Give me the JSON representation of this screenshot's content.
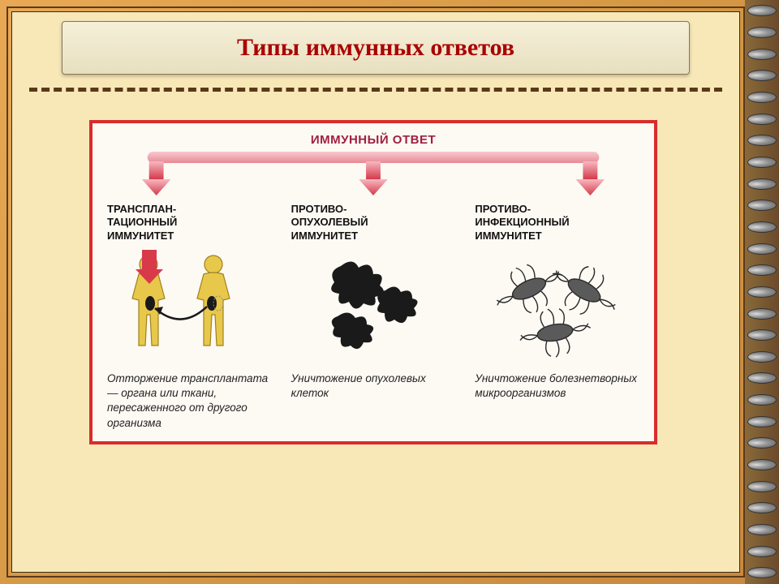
{
  "title": "Типы иммунных ответов",
  "diagram": {
    "border_color": "#d82c2c",
    "bg_color": "#fdfaf4",
    "top_label": "ИММУННЫЙ ОТВЕТ",
    "connector": {
      "bar_gradient": [
        "#f8c8ce",
        "#e88a95"
      ],
      "arrow_gradient": [
        "#f7b8c0",
        "#d43a4a"
      ]
    },
    "columns": [
      {
        "title": "ТРАНСПЛАН-\nТАЦИОННЫЙ\nИММУНИТЕТ",
        "desc": "Отторжение трансплантата — органа или ткани, пересаженного от другого организма",
        "body_color": "#e8c84a",
        "kidney_color": "#1a1a1a",
        "arrow_fill": "#d83a4a"
      },
      {
        "title": "ПРОТИВО-\nОПУХОЛЕВЫЙ\nИММУНИТЕТ",
        "desc": "Уничтожение опухолевых клеток",
        "blob_color": "#1a1a1a"
      },
      {
        "title": "ПРОТИВО-\nИНФЕКЦИОННЫЙ\nИММУНИТЕТ",
        "desc": "Уничтожение болезнетворных микроорганизмов",
        "microbe_fill": "#5a5a5a",
        "flagella": "#2a2a2a"
      }
    ]
  },
  "colors": {
    "title_text": "#aa0000",
    "divider": "#5a3818"
  }
}
